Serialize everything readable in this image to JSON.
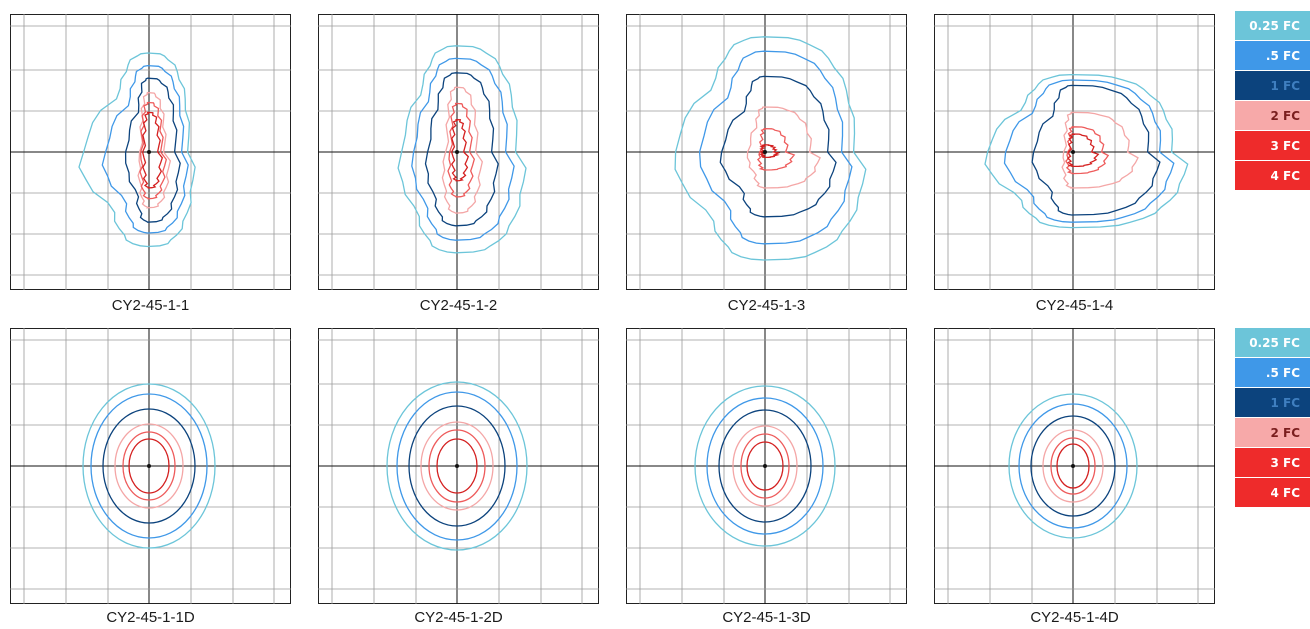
{
  "legend": {
    "items": [
      {
        "label": "0.25 FC",
        "color": "#6cc5d9",
        "text_color": "#ffffff"
      },
      {
        "label": ".5 FC",
        "color": "#3f98e8",
        "text_color": "#ffffff"
      },
      {
        "label": "1 FC",
        "color": "#0c437d",
        "text_color": "#3f7fc0"
      },
      {
        "label": "2 FC",
        "color": "#f7a9a9",
        "text_color": "#7a1e1e"
      },
      {
        "label": "3 FC",
        "color": "#ee2b2b",
        "text_color": "#ffffff"
      },
      {
        "label": "4 FC",
        "color": "#ee2b2b",
        "text_color": "#ffffff"
      }
    ]
  },
  "contour_colors": {
    "fc_0_25": "#6cc5d9",
    "fc_0_5": "#3f98e8",
    "fc_1": "#0c437d",
    "fc_2": "#f4a6a6",
    "fc_3": "#ee5b5b",
    "fc_4": "#d42020"
  },
  "panels": [
    {
      "caption": "CY2-45-1-1",
      "style": "irregular",
      "variant": 1
    },
    {
      "caption": "CY2-45-1-2",
      "style": "irregular",
      "variant": 2
    },
    {
      "caption": "CY2-45-1-3",
      "style": "irregular",
      "variant": 3
    },
    {
      "caption": "CY2-45-1-4",
      "style": "irregular",
      "variant": 4
    },
    {
      "caption": "CY2-45-1-1D",
      "style": "ellipse",
      "variant": 1
    },
    {
      "caption": "CY2-45-1-2D",
      "style": "ellipse",
      "variant": 2
    },
    {
      "caption": "CY2-45-1-3D",
      "style": "ellipse",
      "variant": 3
    },
    {
      "caption": "CY2-45-1-4D",
      "style": "ellipse",
      "variant": 4
    }
  ]
}
